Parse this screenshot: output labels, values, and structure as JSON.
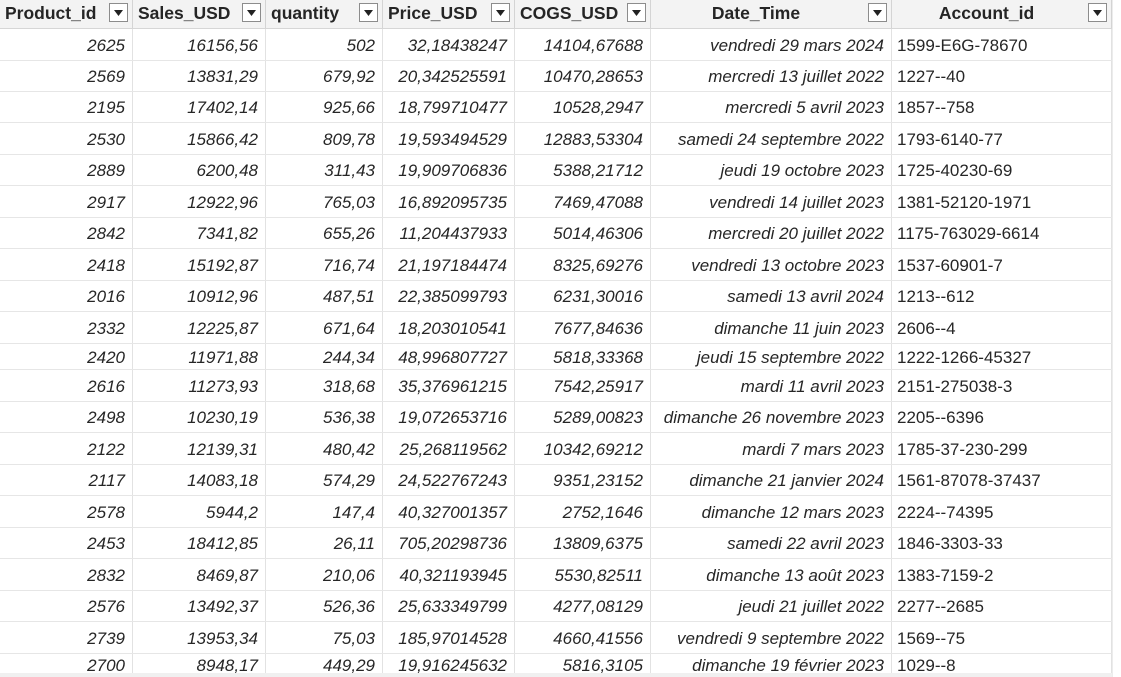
{
  "table": {
    "columns": [
      {
        "key": "product_id",
        "label": "Product_id",
        "align": "left"
      },
      {
        "key": "sales_usd",
        "label": "Sales_USD",
        "align": "left"
      },
      {
        "key": "quantity",
        "label": "quantity",
        "align": "left"
      },
      {
        "key": "price_usd",
        "label": "Price_USD",
        "align": "left"
      },
      {
        "key": "cogs_usd",
        "label": "COGS_USD",
        "align": "left"
      },
      {
        "key": "date_time",
        "label": "Date_Time",
        "align": "center"
      },
      {
        "key": "account_id",
        "label": "Account_id",
        "align": "center"
      }
    ],
    "filter_icon": "chevron-down-icon",
    "rows": [
      [
        "2625",
        "16156,56",
        "502",
        "32,18438247",
        "14104,67688",
        "vendredi 29 mars 2024",
        "1599-E6G-78670"
      ],
      [
        "2569",
        "13831,29",
        "679,92",
        "20,342525591",
        "10470,28653",
        "mercredi 13 juillet 2022",
        "1227--40"
      ],
      [
        "2195",
        "17402,14",
        "925,66",
        "18,799710477",
        "10528,2947",
        "mercredi 5 avril 2023",
        "1857--758"
      ],
      [
        "2530",
        "15866,42",
        "809,78",
        "19,593494529",
        "12883,53304",
        "samedi 24 septembre 2022",
        "1793-6140-77"
      ],
      [
        "2889",
        "6200,48",
        "311,43",
        "19,909706836",
        "5388,21712",
        "jeudi 19 octobre 2023",
        "1725-40230-69"
      ],
      [
        "2917",
        "12922,96",
        "765,03",
        "16,892095735",
        "7469,47088",
        "vendredi 14 juillet 2023",
        "1381-52120-1971"
      ],
      [
        "2842",
        "7341,82",
        "655,26",
        "11,204437933",
        "5014,46306",
        "mercredi 20 juillet 2022",
        "1175-763029-6614"
      ],
      [
        "2418",
        "15192,87",
        "716,74",
        "21,197184474",
        "8325,69276",
        "vendredi 13 octobre 2023",
        "1537-60901-7"
      ],
      [
        "2016",
        "10912,96",
        "487,51",
        "22,385099793",
        "6231,30016",
        "samedi 13 avril 2024",
        "1213--612"
      ],
      [
        "2332",
        "12225,87",
        "671,64",
        "18,203010541",
        "7677,84636",
        "dimanche 11 juin 2023",
        "2606--4"
      ],
      [
        "2420",
        "11971,88",
        "244,34",
        "48,996807727",
        "5818,33368",
        "jeudi 15 septembre 2022",
        "1222-1266-45327"
      ],
      [
        "2616",
        "11273,93",
        "318,68",
        "35,376961215",
        "7542,25917",
        "mardi 11 avril 2023",
        "2151-275038-3"
      ],
      [
        "2498",
        "10230,19",
        "536,38",
        "19,072653716",
        "5289,00823",
        "dimanche 26 novembre 2023",
        "2205--6396"
      ],
      [
        "2122",
        "12139,31",
        "480,42",
        "25,268119562",
        "10342,69212",
        "mardi 7 mars 2023",
        "1785-37-230-299"
      ],
      [
        "2117",
        "14083,18",
        "574,29",
        "24,522767243",
        "9351,23152",
        "dimanche 21 janvier 2024",
        "1561-87078-37437"
      ],
      [
        "2578",
        "5944,2",
        "147,4",
        "40,327001357",
        "2752,1646",
        "dimanche 12 mars 2023",
        "2224--74395"
      ],
      [
        "2453",
        "18412,85",
        "26,11",
        "705,20298736",
        "13809,6375",
        "samedi 22 avril 2023",
        "1846-3303-33"
      ],
      [
        "2832",
        "8469,87",
        "210,06",
        "40,321193945",
        "5530,82511",
        "dimanche 13 août 2023",
        "1383-7159-2"
      ],
      [
        "2576",
        "13492,37",
        "526,36",
        "25,633349799",
        "4277,08129",
        "jeudi 21 juillet 2022",
        "2277--2685"
      ],
      [
        "2739",
        "13953,34",
        "75,03",
        "185,97014528",
        "4660,41556",
        "vendredi 9 septembre 2022",
        "1569--75"
      ],
      [
        "2700",
        "8948,17",
        "449,29",
        "19,916245632",
        "5816,3105",
        "dimanche 19 février 2023",
        "1029--8"
      ]
    ]
  }
}
